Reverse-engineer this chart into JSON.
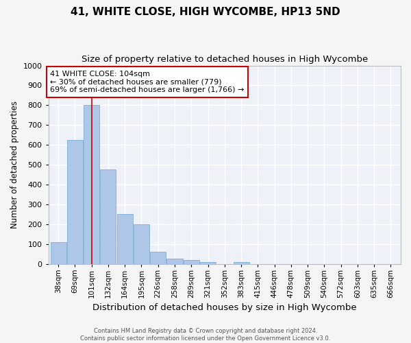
{
  "title": "41, WHITE CLOSE, HIGH WYCOMBE, HP13 5ND",
  "subtitle": "Size of property relative to detached houses in High Wycombe",
  "xlabel": "Distribution of detached houses by size in High Wycombe",
  "ylabel": "Number of detached properties",
  "footer_line1": "Contains HM Land Registry data © Crown copyright and database right 2024.",
  "footer_line2": "Contains public sector information licensed under the Open Government Licence v3.0.",
  "categories": [
    "38sqm",
    "69sqm",
    "101sqm",
    "132sqm",
    "164sqm",
    "195sqm",
    "226sqm",
    "258sqm",
    "289sqm",
    "321sqm",
    "352sqm",
    "383sqm",
    "415sqm",
    "446sqm",
    "478sqm",
    "509sqm",
    "540sqm",
    "572sqm",
    "603sqm",
    "635sqm",
    "666sqm"
  ],
  "values": [
    110,
    625,
    800,
    475,
    250,
    200,
    62,
    25,
    18,
    10,
    0,
    8,
    0,
    0,
    0,
    0,
    0,
    0,
    0,
    0,
    0
  ],
  "bar_color": "#aec6e8",
  "bar_edge_color": "#7bafd4",
  "ylim": [
    0,
    1000
  ],
  "yticks": [
    0,
    100,
    200,
    300,
    400,
    500,
    600,
    700,
    800,
    900,
    1000
  ],
  "property_label": "41 WHITE CLOSE: 104sqm",
  "annotation_line1": "← 30% of detached houses are smaller (779)",
  "annotation_line2": "69% of semi-detached houses are larger (1,766) →",
  "vline_x_index": 2,
  "vline_color": "#cc0000",
  "annotation_box_color": "#ffffff",
  "annotation_box_edge_color": "#cc0000",
  "bg_color": "#eef2f8",
  "grid_color": "#ffffff",
  "fig_bg_color": "#f5f5f5"
}
